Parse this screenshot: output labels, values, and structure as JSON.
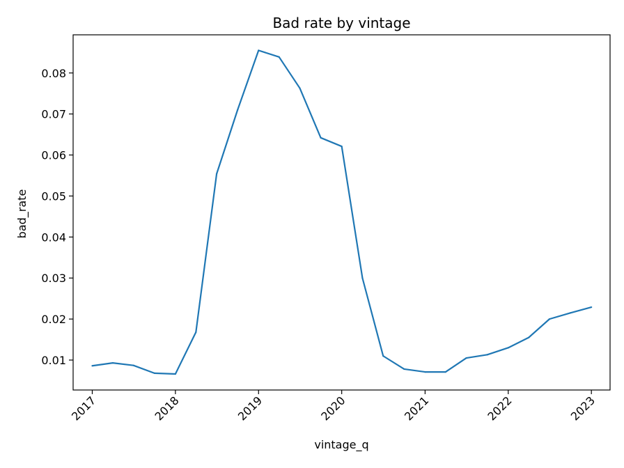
{
  "chart_data": {
    "type": "line",
    "title": "Bad rate by vintage",
    "xlabel": "vintage_q",
    "ylabel": "bad_rate",
    "grid": false,
    "legend": "none",
    "x_ticks": [
      "2017",
      "2018",
      "2019",
      "2020",
      "2021",
      "2022",
      "2023"
    ],
    "y_ticks": [
      "0.01",
      "0.02",
      "0.03",
      "0.04",
      "0.05",
      "0.06",
      "0.07",
      "0.08"
    ],
    "xlim": [
      "2016-10-09",
      "2023-03-24"
    ],
    "ylim": [
      0.0027,
      0.0893
    ],
    "series": [
      {
        "color": "#1f77b4",
        "x": [
          "2017-01-01",
          "2017-04-01",
          "2017-07-01",
          "2017-10-01",
          "2018-01-01",
          "2018-04-01",
          "2018-07-01",
          "2018-10-01",
          "2019-01-01",
          "2019-04-01",
          "2019-07-01",
          "2019-10-01",
          "2020-01-01",
          "2020-04-01",
          "2020-07-01",
          "2020-10-01",
          "2021-01-01",
          "2021-04-01",
          "2021-07-01",
          "2021-10-01",
          "2022-01-01",
          "2022-04-01",
          "2022-07-01",
          "2022-10-01",
          "2023-01-01"
        ],
        "values": [
          0.0086,
          0.0093,
          0.0087,
          0.0068,
          0.0066,
          0.0168,
          0.0554,
          0.071,
          0.0855,
          0.0839,
          0.0763,
          0.0642,
          0.0621,
          0.03,
          0.011,
          0.0078,
          0.0071,
          0.0071,
          0.0105,
          0.0113,
          0.013,
          0.0155,
          0.02,
          0.0215,
          0.0229
        ]
      }
    ]
  }
}
